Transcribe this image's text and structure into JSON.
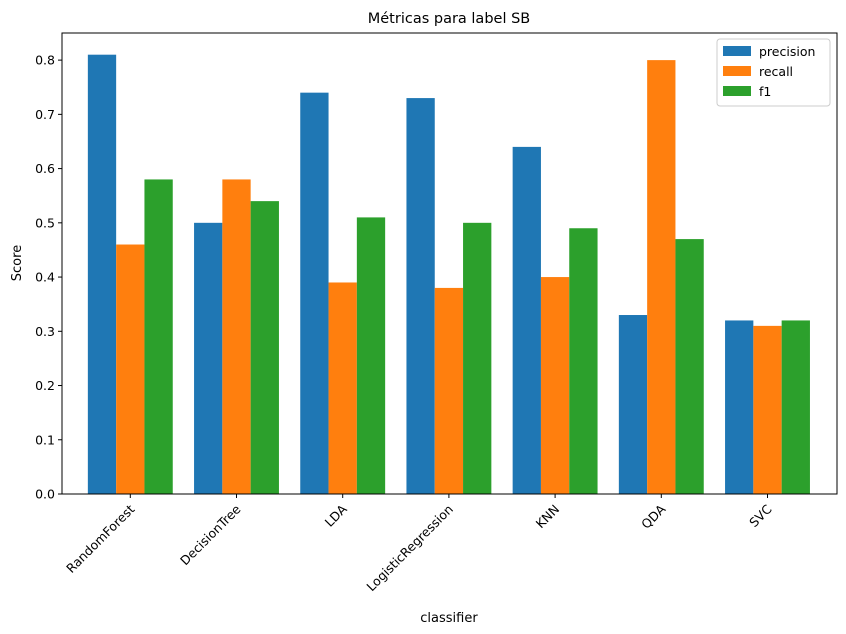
{
  "chart_data": {
    "type": "bar",
    "title": "Métricas para label SB",
    "xlabel": "classifier",
    "ylabel": "Score",
    "categories": [
      "RandomForest",
      "DecisionTree",
      "LDA",
      "LogisticRegression",
      "KNN",
      "QDA",
      "SVC"
    ],
    "series": [
      {
        "name": "precision",
        "color": "#1f77b4",
        "values": [
          0.81,
          0.5,
          0.74,
          0.73,
          0.64,
          0.33,
          0.32
        ]
      },
      {
        "name": "recall",
        "color": "#ff7f0e",
        "values": [
          0.46,
          0.58,
          0.39,
          0.38,
          0.4,
          0.8,
          0.31
        ]
      },
      {
        "name": "f1",
        "color": "#2ca02c",
        "values": [
          0.58,
          0.54,
          0.51,
          0.5,
          0.49,
          0.47,
          0.32
        ]
      }
    ],
    "ylim": [
      0,
      0.85
    ],
    "yticks": [
      "0.0",
      "0.1",
      "0.2",
      "0.3",
      "0.4",
      "0.5",
      "0.6",
      "0.7",
      "0.8"
    ],
    "grid": false,
    "legend_position": "top-right"
  }
}
